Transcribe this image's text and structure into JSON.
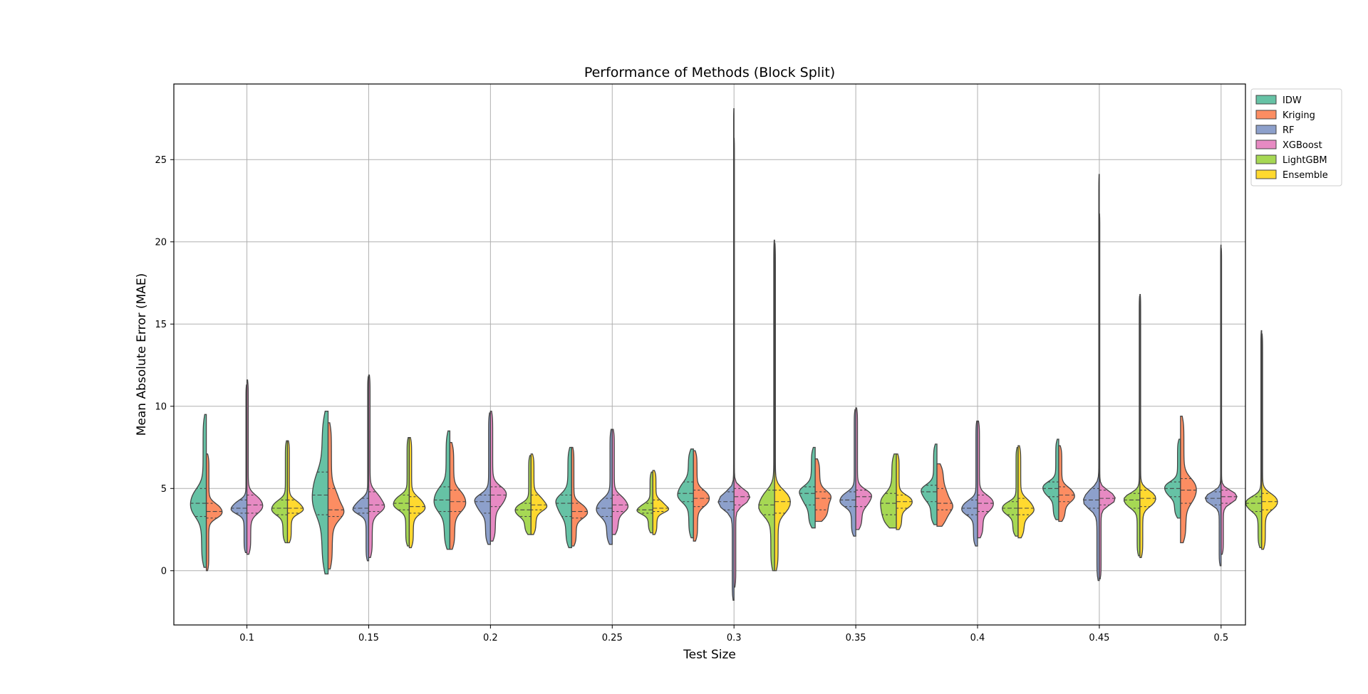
{
  "chart_data": {
    "type": "violin",
    "split": true,
    "inner": "quartile",
    "title": "Performance of Methods (Block Split)",
    "xlabel": "Test Size",
    "ylabel": "Mean Absolute Error (MAE)",
    "ylim": [
      -3.3,
      29.6
    ],
    "yticks": [
      0,
      5,
      10,
      15,
      20,
      25
    ],
    "grid": true,
    "legend_position": "outside top-right",
    "categories": [
      "0.1",
      "0.15",
      "0.2",
      "0.25",
      "0.3",
      "0.35",
      "0.4",
      "0.45",
      "0.5"
    ],
    "series": [
      {
        "name": "IDW",
        "color": "#66c2a5",
        "stats": [
          {
            "min": 0.2,
            "q1": 3.3,
            "median": 4.1,
            "q3": 5.0,
            "max": 9.5
          },
          {
            "min": -0.2,
            "q1": 3.4,
            "median": 4.6,
            "q3": 6.0,
            "max": 9.7
          },
          {
            "min": 1.3,
            "q1": 3.6,
            "median": 4.3,
            "q3": 5.1,
            "max": 8.5
          },
          {
            "min": 1.4,
            "q1": 3.3,
            "median": 4.1,
            "q3": 4.6,
            "max": 7.5
          },
          {
            "min": 2.0,
            "q1": 4.2,
            "median": 4.7,
            "q3": 5.4,
            "max": 7.4
          },
          {
            "min": 2.6,
            "q1": 4.0,
            "median": 4.7,
            "q3": 5.1,
            "max": 7.5
          },
          {
            "min": 2.8,
            "q1": 4.2,
            "median": 4.8,
            "q3": 5.2,
            "max": 7.7
          },
          {
            "min": 3.1,
            "q1": 4.5,
            "median": 5.0,
            "q3": 5.4,
            "max": 8.0
          },
          {
            "min": 3.2,
            "q1": 4.5,
            "median": 5.0,
            "q3": 5.4,
            "max": 8.0
          }
        ]
      },
      {
        "name": "Kriging",
        "color": "#fc8d62",
        "stats": [
          {
            "min": 0.0,
            "q1": 3.2,
            "median": 3.6,
            "q3": 4.1,
            "max": 7.1
          },
          {
            "min": 0.1,
            "q1": 3.3,
            "median": 3.7,
            "q3": 5.0,
            "max": 9.0
          },
          {
            "min": 1.3,
            "q1": 3.6,
            "median": 4.2,
            "q3": 4.9,
            "max": 7.8
          },
          {
            "min": 1.5,
            "q1": 3.2,
            "median": 3.6,
            "q3": 4.1,
            "max": 7.5
          },
          {
            "min": 1.8,
            "q1": 3.9,
            "median": 4.4,
            "q3": 4.9,
            "max": 7.3
          },
          {
            "min": 3.0,
            "q1": 3.7,
            "median": 4.4,
            "q3": 4.8,
            "max": 6.8
          },
          {
            "min": 2.7,
            "q1": 3.7,
            "median": 4.1,
            "q3": 5.0,
            "max": 6.5
          },
          {
            "min": 3.0,
            "q1": 4.2,
            "median": 4.6,
            "q3": 5.1,
            "max": 7.6
          },
          {
            "min": 1.7,
            "q1": 4.1,
            "median": 4.9,
            "q3": 5.6,
            "max": 9.4
          }
        ]
      },
      {
        "name": "RF",
        "color": "#8da0cb",
        "stats": [
          {
            "min": 1.1,
            "q1": 3.5,
            "median": 3.8,
            "q3": 4.3,
            "max": 11.3
          },
          {
            "min": 0.6,
            "q1": 3.5,
            "median": 3.8,
            "q3": 4.4,
            "max": 11.8
          },
          {
            "min": 1.6,
            "q1": 3.5,
            "median": 4.2,
            "q3": 4.6,
            "max": 9.6
          },
          {
            "min": 1.6,
            "q1": 3.3,
            "median": 3.8,
            "q3": 4.4,
            "max": 8.6
          },
          {
            "min": -1.8,
            "q1": 3.7,
            "median": 4.2,
            "q3": 4.8,
            "max": 28.1
          },
          {
            "min": 2.1,
            "q1": 3.9,
            "median": 4.3,
            "q3": 4.8,
            "max": 9.8
          },
          {
            "min": 1.5,
            "q1": 3.4,
            "median": 3.8,
            "q3": 4.3,
            "max": 9.1
          },
          {
            "min": -0.6,
            "q1": 3.8,
            "median": 4.3,
            "q3": 5.0,
            "max": 24.1
          },
          {
            "min": 0.3,
            "q1": 4.0,
            "median": 4.4,
            "q3": 4.8,
            "max": 19.8
          }
        ]
      },
      {
        "name": "XGBoost",
        "color": "#e78ac3",
        "stats": [
          {
            "min": 1.0,
            "q1": 3.5,
            "median": 4.0,
            "q3": 4.6,
            "max": 11.6
          },
          {
            "min": 0.8,
            "q1": 3.6,
            "median": 4.0,
            "q3": 4.8,
            "max": 11.9
          },
          {
            "min": 1.8,
            "q1": 3.9,
            "median": 4.6,
            "q3": 5.1,
            "max": 9.7
          },
          {
            "min": 2.2,
            "q1": 3.6,
            "median": 4.0,
            "q3": 4.6,
            "max": 8.6
          },
          {
            "min": -1.0,
            "q1": 4.0,
            "median": 4.5,
            "q3": 5.0,
            "max": 26.3
          },
          {
            "min": 2.5,
            "q1": 3.9,
            "median": 4.5,
            "q3": 4.9,
            "max": 9.9
          },
          {
            "min": 2.0,
            "q1": 3.6,
            "median": 4.1,
            "q3": 4.6,
            "max": 9.1
          },
          {
            "min": -0.5,
            "q1": 4.0,
            "median": 4.4,
            "q3": 4.9,
            "max": 21.7
          },
          {
            "min": 1.0,
            "q1": 4.1,
            "median": 4.5,
            "q3": 4.9,
            "max": 19.6
          }
        ]
      },
      {
        "name": "LightGBM",
        "color": "#a6d854",
        "stats": [
          {
            "min": 1.7,
            "q1": 3.4,
            "median": 3.8,
            "q3": 4.3,
            "max": 7.9
          },
          {
            "min": 1.5,
            "q1": 3.7,
            "median": 4.1,
            "q3": 4.6,
            "max": 8.1
          },
          {
            "min": 2.2,
            "q1": 3.3,
            "median": 3.7,
            "q3": 4.1,
            "max": 7.0
          },
          {
            "min": 2.3,
            "q1": 3.5,
            "median": 3.7,
            "q3": 4.1,
            "max": 6.0
          },
          {
            "min": 0.0,
            "q1": 3.4,
            "median": 4.0,
            "q3": 4.9,
            "max": 20.1
          },
          {
            "min": 2.6,
            "q1": 3.4,
            "median": 4.1,
            "q3": 4.7,
            "max": 7.1
          },
          {
            "min": 2.1,
            "q1": 3.4,
            "median": 3.8,
            "q3": 4.2,
            "max": 7.5
          },
          {
            "min": 0.9,
            "q1": 3.8,
            "median": 4.3,
            "q3": 4.7,
            "max": 16.7
          },
          {
            "min": 1.4,
            "q1": 3.6,
            "median": 4.1,
            "q3": 4.5,
            "max": 14.6
          }
        ]
      },
      {
        "name": "Ensemble",
        "color": "#ffd92f",
        "stats": [
          {
            "min": 1.7,
            "q1": 3.5,
            "median": 3.8,
            "q3": 4.3,
            "max": 7.9
          },
          {
            "min": 1.4,
            "q1": 3.5,
            "median": 3.9,
            "q3": 4.5,
            "max": 8.1
          },
          {
            "min": 2.2,
            "q1": 3.7,
            "median": 4.0,
            "q3": 4.6,
            "max": 7.1
          },
          {
            "min": 2.2,
            "q1": 3.6,
            "median": 3.8,
            "q3": 4.3,
            "max": 6.1
          },
          {
            "min": 0.0,
            "q1": 3.5,
            "median": 4.2,
            "q3": 4.9,
            "max": 19.9
          },
          {
            "min": 2.5,
            "q1": 3.8,
            "median": 4.2,
            "q3": 4.6,
            "max": 7.1
          },
          {
            "min": 2.0,
            "q1": 3.4,
            "median": 3.8,
            "q3": 4.4,
            "max": 7.6
          },
          {
            "min": 0.8,
            "q1": 3.9,
            "median": 4.4,
            "q3": 4.9,
            "max": 16.8
          },
          {
            "min": 1.3,
            "q1": 3.7,
            "median": 4.2,
            "q3": 4.7,
            "max": 14.4
          }
        ]
      }
    ]
  }
}
